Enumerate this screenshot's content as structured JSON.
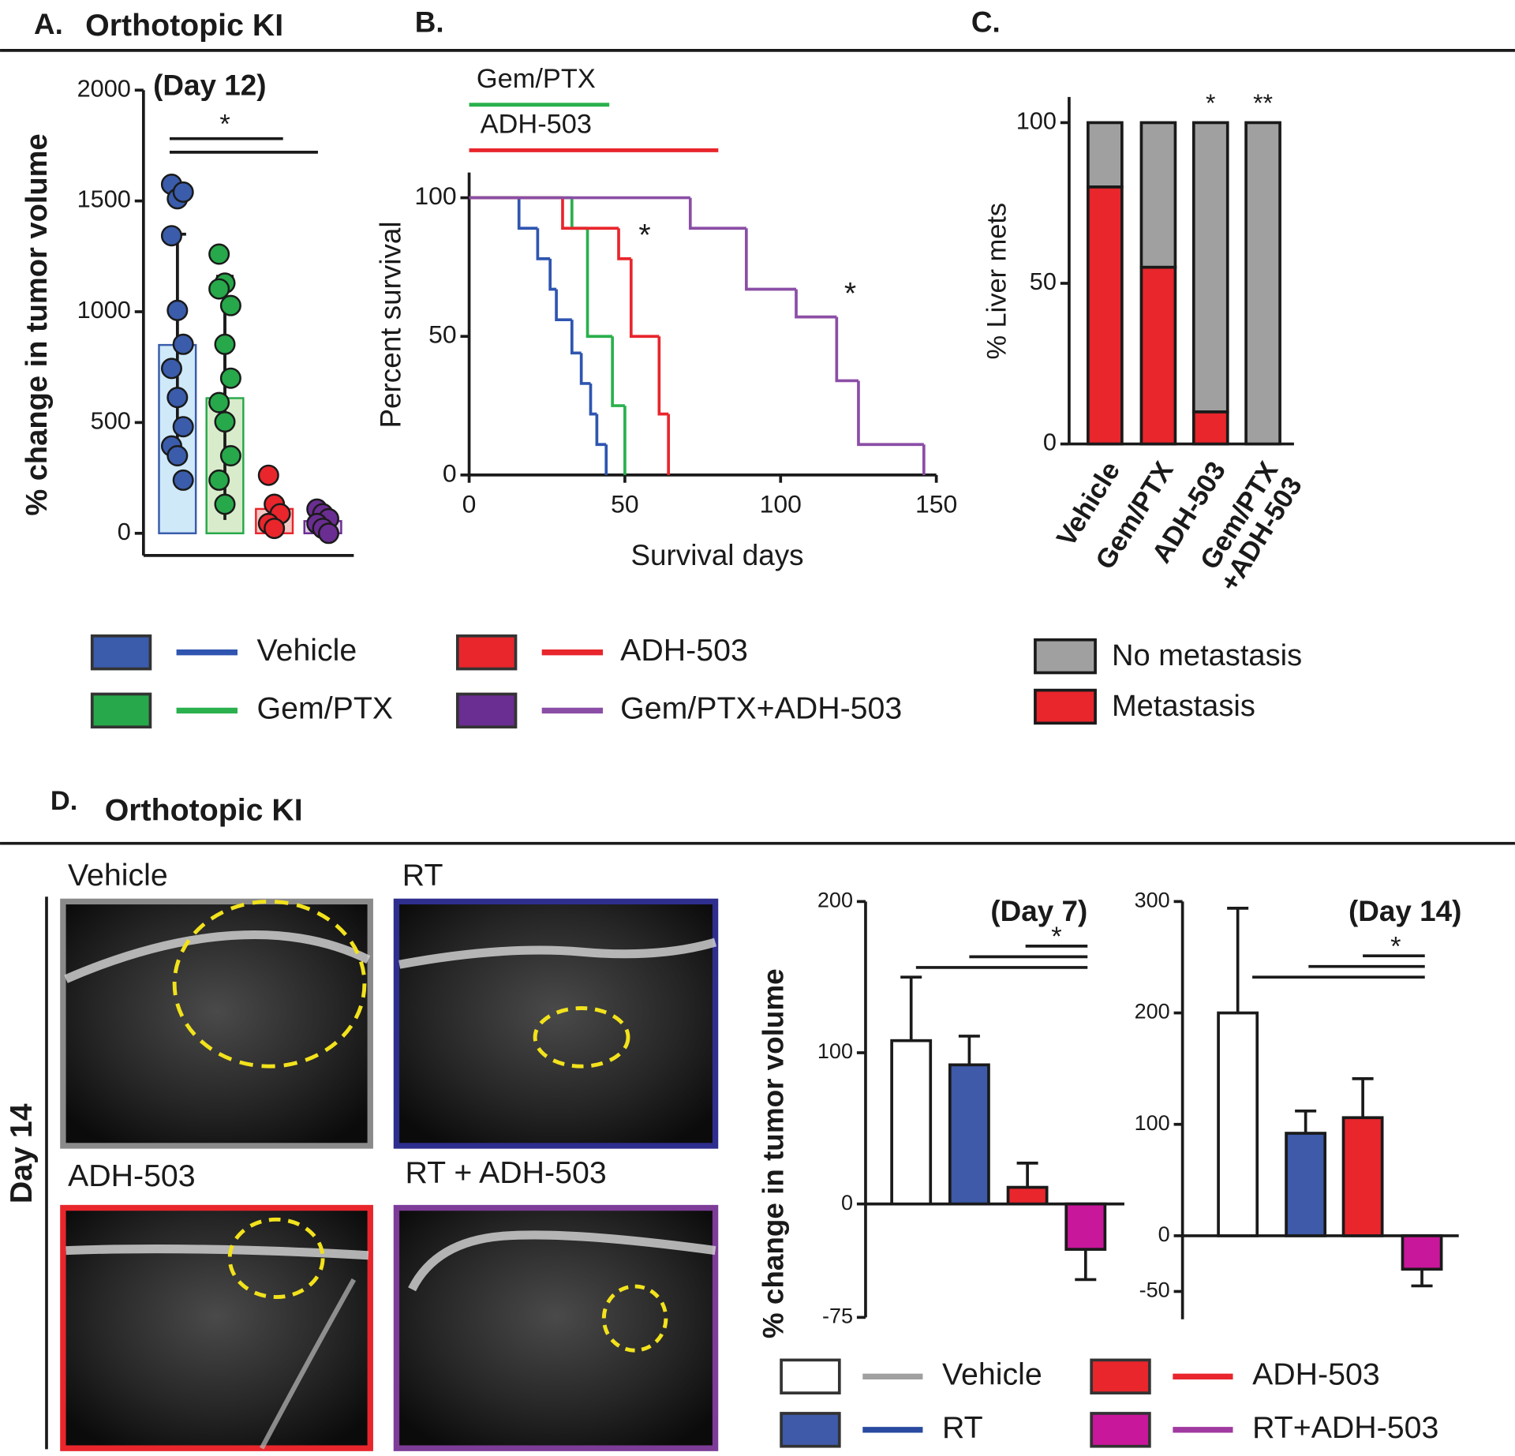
{
  "chart_data": [
    {
      "type": "bar",
      "panel": "A.",
      "title": "Orthotopic KI",
      "subtitle": "(Day 12)",
      "y_label": "% change in tumor volume",
      "ylim": [
        -100,
        2000
      ],
      "yticks": [
        0,
        500,
        1000,
        1500,
        2000
      ],
      "significance": "*",
      "series": [
        {
          "name": "Vehicle",
          "color": "#cfe9f9",
          "point_color": "#3a5cab",
          "values": [
            850
          ],
          "errors": [
            500
          ],
          "points": [
            1575,
            1510,
            1540,
            1343,
            1006,
            853,
            744,
            613,
            481,
            394,
            350,
            240
          ]
        },
        {
          "name": "Gem/PTX",
          "color": "#d8eccb",
          "point_color": "#27a84a",
          "values": [
            610
          ],
          "errors": [
            550
          ],
          "points": [
            1260,
            1129,
            1028,
            1103,
            853,
            700,
            590,
            503,
            350,
            240,
            131
          ]
        },
        {
          "name": "ADH-503",
          "color": "#f4c9c5",
          "point_color": "#e8262c",
          "values": [
            110
          ],
          "errors": [
            40
          ],
          "points": [
            262,
            131,
            88,
            44,
            22
          ]
        },
        {
          "name": "Gem/PTX+ADH-503",
          "color": "#dccbe8",
          "point_color": "#6a2d91",
          "values": [
            55
          ],
          "errors": [
            20
          ],
          "points": [
            109,
            88,
            66,
            44,
            22,
            0
          ]
        }
      ]
    },
    {
      "type": "line",
      "panel": "B.",
      "x_label": "Survival days",
      "y_label": "Percent survival",
      "xlim": [
        0,
        150
      ],
      "xticks": [
        0,
        50,
        100,
        150
      ],
      "ylim": [
        0,
        110
      ],
      "yticks": [
        0,
        50,
        100
      ],
      "treatments": [
        {
          "name": "Gem/PTX",
          "color": "#2ab04d",
          "range": [
            0,
            45
          ]
        },
        {
          "name": "ADH-503",
          "color": "#e8262c",
          "range": [
            0,
            80
          ]
        }
      ],
      "series": [
        {
          "color": "#2f55b0",
          "x": [
            0,
            16,
            22,
            26,
            28,
            33,
            36,
            39,
            41,
            44
          ],
          "values": [
            100,
            89,
            78,
            67,
            56,
            44,
            33,
            22,
            11,
            0
          ]
        },
        {
          "color": "#2ab04d",
          "x": [
            0,
            33,
            38,
            46,
            50
          ],
          "values": [
            100,
            89,
            50,
            25,
            0
          ]
        },
        {
          "color": "#e8262c",
          "x": [
            0,
            30,
            48,
            52,
            61,
            64
          ],
          "values": [
            100,
            89,
            78,
            50,
            22,
            0
          ],
          "annotation": "*"
        },
        {
          "color": "#8b4ea6",
          "x": [
            0,
            71,
            89,
            105,
            118,
            125,
            146
          ],
          "values": [
            100,
            89,
            67,
            57,
            34,
            11,
            0
          ],
          "annotation": "*"
        }
      ]
    },
    {
      "type": "stacked_bar",
      "panel": "C.",
      "y_label": "% Liver mets",
      "categories": [
        "Vehicle",
        "Gem/PTX",
        "ADH-503",
        "Gem/PTX\n+ADH-503"
      ],
      "ylim": [
        0,
        108
      ],
      "yticks": [
        0,
        50,
        100
      ],
      "significance": [
        null,
        null,
        "*",
        "**"
      ],
      "series": [
        {
          "name": "Metastasis",
          "color": "#e8262c",
          "values": [
            80,
            55,
            10,
            0
          ]
        },
        {
          "name": "No metastasis",
          "color": "#a0a0a0",
          "values": [
            20,
            45,
            90,
            100
          ]
        }
      ]
    },
    {
      "type": "bar",
      "subtitle": "(Day 7)",
      "y_label": "% change in tumor volume",
      "significance": "*",
      "ylim": [
        -75,
        200
      ],
      "yticks": [
        -75,
        0,
        100,
        200
      ],
      "series": [
        {
          "name": "Vehicle",
          "color": "#ffffff",
          "line_color": "#a0a0a0",
          "values": [
            108
          ],
          "errors": [
            42
          ]
        },
        {
          "name": "RT",
          "color": "#3e5aa8",
          "line_color": "#2a4aa0",
          "values": [
            92
          ],
          "errors": [
            19
          ]
        },
        {
          "name": "ADH-503",
          "color": "#e8262c",
          "line_color": "#e8262c",
          "values": [
            11
          ],
          "errors": [
            16
          ]
        },
        {
          "name": "RT+ADH-503",
          "color": "#c8179a",
          "line_color": "#a03aa0",
          "values": [
            -30
          ],
          "errors": [
            20
          ]
        }
      ]
    },
    {
      "type": "bar",
      "subtitle": "(Day 14)",
      "significance": "*",
      "ylim": [
        -75,
        300
      ],
      "yticks": [
        -50,
        0,
        100,
        200,
        300
      ],
      "series": [
        {
          "color": "#ffffff",
          "values": [
            200
          ],
          "errors": [
            94
          ]
        },
        {
          "color": "#3e5aa8",
          "values": [
            92
          ],
          "errors": [
            20
          ]
        },
        {
          "color": "#e8262c",
          "values": [
            106
          ],
          "errors": [
            35
          ]
        },
        {
          "color": "#c8179a",
          "values": [
            -30
          ],
          "errors": [
            15
          ]
        }
      ]
    }
  ],
  "panel_d": {
    "label": "D.",
    "title": "Orthotopic KI",
    "side_label": "Day 14",
    "images": [
      "Vehicle",
      "RT",
      "ADH-503",
      "RT + ADH-503"
    ]
  }
}
